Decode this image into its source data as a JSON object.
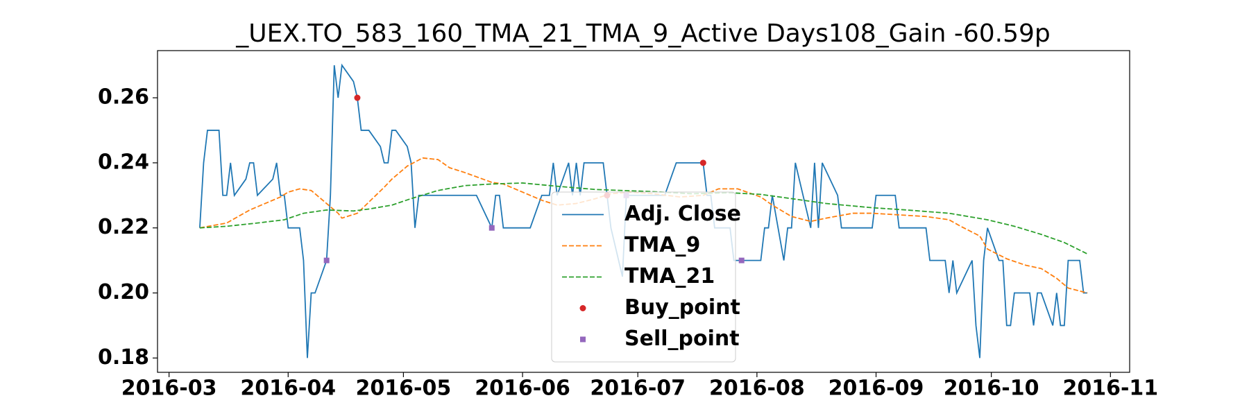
{
  "chart_data": {
    "type": "line",
    "title": "_UEX.TO_583_160_TMA_21_TMA_9_Active Days108_Gain -60.59p",
    "xlim": [
      "2016-02-27",
      "2016-11-06"
    ],
    "xticks": [
      {
        "value": "2016-03-01",
        "label": "2016-03"
      },
      {
        "value": "2016-04-01",
        "label": "2016-04"
      },
      {
        "value": "2016-05-01",
        "label": "2016-05"
      },
      {
        "value": "2016-06-01",
        "label": "2016-06"
      },
      {
        "value": "2016-07-01",
        "label": "2016-07"
      },
      {
        "value": "2016-08-01",
        "label": "2016-08"
      },
      {
        "value": "2016-09-01",
        "label": "2016-09"
      },
      {
        "value": "2016-10-01",
        "label": "2016-10"
      },
      {
        "value": "2016-11-01",
        "label": "2016-11"
      }
    ],
    "ylim": [
      0.1756,
      0.2745
    ],
    "yticks": [
      0.18,
      {
        "value": 0.2,
        "label": "0.20"
      },
      0.22,
      0.24,
      0.26
    ],
    "legend_loc": "lower center",
    "series": [
      {
        "name": "Adj. Close",
        "color": "#1f77b4",
        "style": "solid",
        "marker": "none",
        "x": [
          "2016-03-09",
          "2016-03-10",
          "2016-03-11",
          "2016-03-14",
          "2016-03-15",
          "2016-03-16",
          "2016-03-17",
          "2016-03-18",
          "2016-03-21",
          "2016-03-22",
          "2016-03-23",
          "2016-03-24",
          "2016-03-28",
          "2016-03-29",
          "2016-03-30",
          "2016-03-31",
          "2016-04-01",
          "2016-04-04",
          "2016-04-05",
          "2016-04-06",
          "2016-04-07",
          "2016-04-08",
          "2016-04-11",
          "2016-04-12",
          "2016-04-13",
          "2016-04-14",
          "2016-04-15",
          "2016-04-18",
          "2016-04-19",
          "2016-04-20",
          "2016-04-21",
          "2016-04-22",
          "2016-04-25",
          "2016-04-26",
          "2016-04-27",
          "2016-04-28",
          "2016-04-29",
          "2016-05-02",
          "2016-05-03",
          "2016-05-04",
          "2016-05-05",
          "2016-05-06",
          "2016-05-10",
          "2016-05-13",
          "2016-05-17",
          "2016-05-20",
          "2016-05-24",
          "2016-05-25",
          "2016-05-26",
          "2016-05-27",
          "2016-05-30",
          "2016-06-01",
          "2016-06-03",
          "2016-06-06",
          "2016-06-08",
          "2016-06-09",
          "2016-06-10",
          "2016-06-13",
          "2016-06-14",
          "2016-06-15",
          "2016-06-16",
          "2016-06-17",
          "2016-06-21",
          "2016-06-22",
          "2016-06-23",
          "2016-06-24",
          "2016-06-27",
          "2016-06-28",
          "2016-06-29",
          "2016-07-04",
          "2016-07-07",
          "2016-07-08",
          "2016-07-11",
          "2016-07-14",
          "2016-07-18",
          "2016-07-19",
          "2016-07-20",
          "2016-07-21",
          "2016-07-25",
          "2016-07-26",
          "2016-07-28",
          "2016-08-02",
          "2016-08-03",
          "2016-08-04",
          "2016-08-05",
          "2016-08-08",
          "2016-08-09",
          "2016-08-10",
          "2016-08-11",
          "2016-08-15",
          "2016-08-16",
          "2016-08-17",
          "2016-08-18",
          "2016-08-22",
          "2016-08-23",
          "2016-08-31",
          "2016-09-01",
          "2016-09-06",
          "2016-09-07",
          "2016-09-14",
          "2016-09-15",
          "2016-09-19",
          "2016-09-20",
          "2016-09-21",
          "2016-09-22",
          "2016-09-26",
          "2016-09-27",
          "2016-09-28",
          "2016-09-29",
          "2016-09-30",
          "2016-10-03",
          "2016-10-04",
          "2016-10-05",
          "2016-10-06",
          "2016-10-07",
          "2016-10-11",
          "2016-10-12",
          "2016-10-13",
          "2016-10-14",
          "2016-10-17",
          "2016-10-18",
          "2016-10-19",
          "2016-10-20",
          "2016-10-21",
          "2016-10-24",
          "2016-10-25",
          "2016-10-26"
        ],
        "values": [
          0.22,
          0.24,
          0.25,
          0.25,
          0.23,
          0.23,
          0.24,
          0.23,
          0.235,
          0.24,
          0.24,
          0.23,
          0.235,
          0.24,
          0.23,
          0.23,
          0.22,
          0.22,
          0.21,
          0.18,
          0.2,
          0.2,
          0.21,
          0.23,
          0.27,
          0.26,
          0.27,
          0.265,
          0.26,
          0.25,
          0.25,
          0.25,
          0.245,
          0.24,
          0.24,
          0.25,
          0.25,
          0.245,
          0.24,
          0.22,
          0.23,
          0.23,
          0.23,
          0.23,
          0.23,
          0.23,
          0.22,
          0.23,
          0.23,
          0.22,
          0.22,
          0.22,
          0.22,
          0.23,
          0.23,
          0.24,
          0.23,
          0.24,
          0.23,
          0.24,
          0.23,
          0.24,
          0.24,
          0.24,
          0.23,
          0.22,
          0.205,
          0.23,
          0.23,
          0.23,
          0.23,
          0.23,
          0.24,
          0.24,
          0.24,
          0.23,
          0.23,
          0.22,
          0.22,
          0.21,
          0.21,
          0.21,
          0.22,
          0.22,
          0.23,
          0.21,
          0.22,
          0.22,
          0.24,
          0.22,
          0.24,
          0.22,
          0.24,
          0.23,
          0.22,
          0.22,
          0.23,
          0.23,
          0.22,
          0.22,
          0.21,
          0.21,
          0.2,
          0.21,
          0.2,
          0.21,
          0.19,
          0.18,
          0.21,
          0.22,
          0.21,
          0.21,
          0.19,
          0.19,
          0.2,
          0.2,
          0.19,
          0.2,
          0.2,
          0.19,
          0.2,
          0.19,
          0.19,
          0.21,
          0.21,
          0.2,
          0.2
        ]
      },
      {
        "name": "TMA_9",
        "color": "#ff7f0e",
        "style": "dashed",
        "marker": "none",
        "x": [
          "2016-03-09",
          "2016-03-16",
          "2016-03-22",
          "2016-03-25",
          "2016-03-30",
          "2016-04-01",
          "2016-04-04",
          "2016-04-07",
          "2016-04-11",
          "2016-04-14",
          "2016-04-15",
          "2016-04-19",
          "2016-04-26",
          "2016-04-28",
          "2016-05-02",
          "2016-05-06",
          "2016-05-10",
          "2016-05-13",
          "2016-05-17",
          "2016-05-24",
          "2016-05-27",
          "2016-06-01",
          "2016-06-06",
          "2016-06-10",
          "2016-06-15",
          "2016-06-20",
          "2016-06-24",
          "2016-06-29",
          "2016-07-05",
          "2016-07-12",
          "2016-07-18",
          "2016-07-22",
          "2016-07-27",
          "2016-08-02",
          "2016-08-05",
          "2016-08-10",
          "2016-08-15",
          "2016-08-19",
          "2016-08-26",
          "2016-08-31",
          "2016-09-07",
          "2016-09-14",
          "2016-09-20",
          "2016-09-23",
          "2016-09-28",
          "2016-09-30",
          "2016-10-05",
          "2016-10-10",
          "2016-10-14",
          "2016-10-18",
          "2016-10-21",
          "2016-10-26"
        ],
        "values": [
          0.22,
          0.2215,
          0.2255,
          0.227,
          0.2295,
          0.231,
          0.232,
          0.2315,
          0.2275,
          0.2245,
          0.223,
          0.2245,
          0.2325,
          0.235,
          0.239,
          0.2415,
          0.241,
          0.2385,
          0.237,
          0.234,
          0.2335,
          0.231,
          0.2285,
          0.227,
          0.2275,
          0.229,
          0.2305,
          0.231,
          0.2305,
          0.2295,
          0.23,
          0.232,
          0.232,
          0.2295,
          0.227,
          0.2235,
          0.222,
          0.223,
          0.2245,
          0.2245,
          0.224,
          0.2235,
          0.2225,
          0.2205,
          0.2175,
          0.2135,
          0.2105,
          0.2085,
          0.2075,
          0.2045,
          0.2015,
          0.2
        ]
      },
      {
        "name": "TMA_21",
        "color": "#2ca02c",
        "style": "dashed",
        "marker": "none",
        "x": [
          "2016-03-09",
          "2016-03-16",
          "2016-03-24",
          "2016-03-31",
          "2016-04-05",
          "2016-04-11",
          "2016-04-18",
          "2016-04-22",
          "2016-04-28",
          "2016-05-03",
          "2016-05-10",
          "2016-05-17",
          "2016-05-24",
          "2016-06-01",
          "2016-06-10",
          "2016-06-20",
          "2016-07-04",
          "2016-07-15",
          "2016-07-25",
          "2016-08-02",
          "2016-08-10",
          "2016-08-19",
          "2016-08-31",
          "2016-09-09",
          "2016-09-20",
          "2016-09-30",
          "2016-10-07",
          "2016-10-14",
          "2016-10-20",
          "2016-10-26"
        ],
        "values": [
          0.22,
          0.2205,
          0.2215,
          0.2225,
          0.2245,
          0.2255,
          0.2252,
          0.2258,
          0.227,
          0.229,
          0.2315,
          0.233,
          0.2335,
          0.2338,
          0.2328,
          0.2318,
          0.2312,
          0.2305,
          0.2308,
          0.2303,
          0.229,
          0.2275,
          0.2262,
          0.2255,
          0.2245,
          0.2225,
          0.2205,
          0.218,
          0.2155,
          0.212
        ]
      },
      {
        "name": "Buy_point",
        "color": "#d62728",
        "style": "none",
        "marker": "circle",
        "x": [
          "2016-04-19",
          "2016-06-23",
          "2016-07-18"
        ],
        "values": [
          0.26,
          0.23,
          0.24
        ]
      },
      {
        "name": "Sell_point",
        "color": "#9467bd",
        "style": "none",
        "marker": "square",
        "x": [
          "2016-04-11",
          "2016-05-24",
          "2016-06-28",
          "2016-07-28"
        ],
        "values": [
          0.21,
          0.22,
          0.23,
          0.21
        ]
      }
    ]
  }
}
